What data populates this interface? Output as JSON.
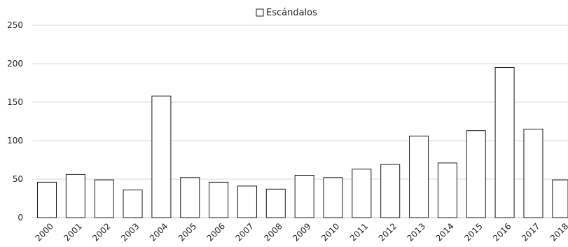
{
  "chart_data": {
    "type": "bar",
    "legend": {
      "label": "Escándalos",
      "position": "top-center"
    },
    "categories": [
      "2000",
      "2001",
      "2002",
      "2003",
      "2004",
      "2005",
      "2006",
      "2007",
      "2008",
      "2009",
      "2010",
      "2011",
      "2012",
      "2013",
      "2014",
      "2015",
      "2016",
      "2017",
      "2018"
    ],
    "series": [
      {
        "name": "Escándalos",
        "values": [
          46,
          56,
          49,
          36,
          158,
          52,
          46,
          41,
          37,
          55,
          52,
          63,
          69,
          106,
          71,
          113,
          195,
          115,
          49
        ]
      }
    ],
    "ylim": [
      0,
      250
    ],
    "yticks": [
      "0",
      "50",
      "100",
      "150",
      "200",
      "250"
    ],
    "grid": true,
    "bar_fill": "#ffffff",
    "bar_stroke": "#1a1a1a",
    "grid_color": "#d9d9d9"
  }
}
